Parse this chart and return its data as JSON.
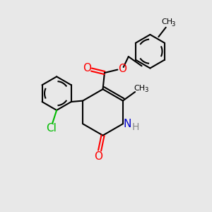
{
  "bg_color": "#e8e8e8",
  "bond_color": "#000000",
  "o_color": "#ff0000",
  "n_color": "#0000cc",
  "cl_color": "#00bb00",
  "line_width": 1.5,
  "xlim": [
    0,
    10
  ],
  "ylim": [
    0,
    10
  ]
}
